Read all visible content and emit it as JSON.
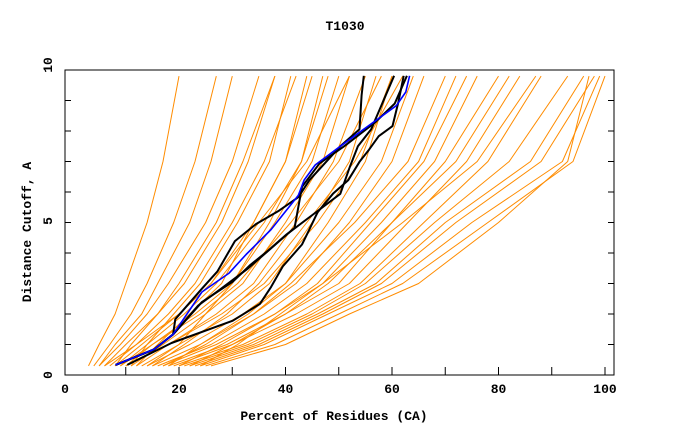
{
  "chart_data": {
    "type": "line",
    "title": "T1030",
    "xlabel": "Percent of Residues (CA)",
    "ylabel": "Distance Cutoff, A",
    "xlim": [
      0,
      100
    ],
    "ylim": [
      0,
      10
    ],
    "xticks": [
      "0",
      "20",
      "40",
      "60",
      "80",
      "100"
    ],
    "yticks": [
      "0",
      "5",
      "10"
    ],
    "grid": false,
    "colors": {
      "others": "#FF8C00",
      "highlight": "#000000",
      "selected": "#0000FF",
      "axes": "#000000"
    },
    "orange_series": [
      {
        "x": [
          3,
          5,
          8,
          10,
          14,
          17,
          20
        ],
        "y": [
          0.3,
          1,
          2,
          3,
          5,
          7,
          9.8
        ]
      },
      {
        "x": [
          4,
          7,
          11,
          14,
          19,
          23,
          27
        ],
        "y": [
          0.3,
          1,
          2,
          3,
          5,
          7,
          9.8
        ]
      },
      {
        "x": [
          5,
          9,
          14,
          18,
          25,
          30,
          35
        ],
        "y": [
          0.3,
          1,
          2,
          3,
          5,
          7,
          9.8
        ]
      },
      {
        "x": [
          6,
          10,
          16,
          21,
          28,
          33,
          38
        ],
        "y": [
          0.3,
          1,
          2,
          3,
          5,
          7,
          9.8
        ]
      },
      {
        "x": [
          7,
          12,
          18,
          23,
          30,
          36,
          42
        ],
        "y": [
          0.3,
          1,
          2,
          3,
          5,
          7,
          9.8
        ]
      },
      {
        "x": [
          8,
          13,
          20,
          26,
          34,
          40,
          45
        ],
        "y": [
          0.3,
          1,
          2,
          3,
          5,
          7,
          9.8
        ]
      },
      {
        "x": [
          9,
          14,
          21,
          27,
          36,
          43,
          48
        ],
        "y": [
          0.3,
          1,
          2,
          3,
          5,
          7,
          9.8
        ]
      },
      {
        "x": [
          10,
          15,
          23,
          30,
          38,
          45,
          50
        ],
        "y": [
          0.3,
          1,
          2,
          3,
          5,
          7,
          9.8
        ]
      },
      {
        "x": [
          11,
          17,
          25,
          32,
          40,
          47,
          52
        ],
        "y": [
          0.3,
          1,
          2,
          3,
          5,
          7,
          9.8
        ]
      },
      {
        "x": [
          12,
          18,
          27,
          34,
          42,
          49,
          55
        ],
        "y": [
          0.3,
          1,
          2,
          3,
          5,
          7,
          9.8
        ]
      },
      {
        "x": [
          13,
          20,
          30,
          37,
          45,
          52,
          57
        ],
        "y": [
          0.3,
          1,
          2,
          3,
          5,
          7,
          9.8
        ]
      },
      {
        "x": [
          14,
          22,
          32,
          40,
          48,
          55,
          60
        ],
        "y": [
          0.3,
          1,
          2,
          3,
          5,
          7,
          9.8
        ]
      },
      {
        "x": [
          15,
          24,
          34,
          42,
          52,
          60,
          66
        ],
        "y": [
          0.3,
          1,
          2,
          3,
          5,
          7,
          9.8
        ]
      },
      {
        "x": [
          16,
          26,
          36,
          44,
          55,
          65,
          72
        ],
        "y": [
          0.3,
          1,
          2,
          3,
          5,
          7,
          9.8
        ]
      },
      {
        "x": [
          17,
          27,
          38,
          47,
          58,
          68,
          76
        ],
        "y": [
          0.3,
          1,
          2,
          3,
          5,
          7,
          9.8
        ]
      },
      {
        "x": [
          18,
          29,
          40,
          50,
          60,
          70,
          80
        ],
        "y": [
          0.3,
          1,
          2,
          3,
          5,
          7,
          9.8
        ]
      },
      {
        "x": [
          19,
          30,
          42,
          52,
          63,
          74,
          84
        ],
        "y": [
          0.3,
          1,
          2,
          3,
          5,
          7,
          9.8
        ]
      },
      {
        "x": [
          20,
          32,
          44,
          54,
          66,
          78,
          88
        ],
        "y": [
          0.3,
          1,
          2,
          3,
          5,
          7,
          9.8
        ]
      },
      {
        "x": [
          21,
          33,
          45,
          55,
          68,
          82,
          93
        ],
        "y": [
          0.3,
          1,
          2,
          3,
          5,
          7,
          9.8
        ]
      },
      {
        "x": [
          22,
          34,
          46,
          57,
          70,
          86,
          96
        ],
        "y": [
          0.3,
          1,
          2,
          3,
          5,
          7,
          9.8
        ]
      },
      {
        "x": [
          23,
          35,
          47,
          58,
          72,
          88,
          98
        ],
        "y": [
          0.3,
          1,
          2,
          3,
          5,
          7,
          9.8
        ]
      },
      {
        "x": [
          24,
          36,
          48,
          60,
          75,
          92,
          99
        ],
        "y": [
          0.3,
          1,
          2,
          3,
          5,
          7,
          9.8
        ]
      },
      {
        "x": [
          25,
          38,
          50,
          62,
          78,
          94,
          100
        ],
        "y": [
          0.3,
          1,
          2,
          3,
          5,
          7,
          9.8
        ]
      },
      {
        "x": [
          26,
          40,
          52,
          65,
          80,
          93,
          97
        ],
        "y": [
          0.3,
          1,
          2,
          3,
          5,
          7,
          9.8
        ]
      },
      {
        "x": [
          14,
          20,
          25,
          30,
          37,
          43,
          47
        ],
        "y": [
          0.3,
          1,
          2,
          3,
          5,
          7,
          9.8
        ]
      },
      {
        "x": [
          8,
          11,
          16,
          20,
          27,
          32,
          38
        ],
        "y": [
          0.3,
          1,
          2,
          3,
          5,
          7,
          9.8
        ]
      },
      {
        "x": [
          12,
          16,
          22,
          28,
          34,
          40,
          44
        ],
        "y": [
          0.3,
          1,
          2,
          3,
          5,
          7,
          9.8
        ]
      },
      {
        "x": [
          18,
          24,
          33,
          40,
          50,
          58,
          64
        ],
        "y": [
          0.3,
          1,
          2,
          3,
          5,
          7,
          9.8
        ]
      },
      {
        "x": [
          20,
          28,
          38,
          46,
          56,
          66,
          74
        ],
        "y": [
          0.3,
          1,
          2,
          3,
          5,
          7,
          9.8
        ]
      },
      {
        "x": [
          10,
          18,
          28,
          36,
          46,
          54,
          60
        ],
        "y": [
          0.3,
          1,
          2,
          3,
          5,
          7,
          9.8
        ]
      },
      {
        "x": [
          6,
          12,
          20,
          26,
          35,
          44,
          52
        ],
        "y": [
          0.3,
          1,
          2,
          3,
          5,
          7,
          9.8
        ]
      },
      {
        "x": [
          15,
          21,
          29,
          35,
          44,
          53,
          62
        ],
        "y": [
          0.3,
          1,
          2,
          3,
          5,
          7,
          9.8
        ]
      },
      {
        "x": [
          17,
          25,
          34,
          41,
          53,
          63,
          70
        ],
        "y": [
          0.3,
          1,
          2,
          3,
          5,
          7,
          9.8
        ]
      },
      {
        "x": [
          22,
          30,
          40,
          48,
          60,
          72,
          82
        ],
        "y": [
          0.3,
          1,
          2,
          3,
          5,
          7,
          9.8
        ]
      },
      {
        "x": [
          24,
          31,
          39,
          47,
          62,
          76,
          87
        ],
        "y": [
          0.3,
          1,
          2,
          3,
          5,
          7,
          9.8
        ]
      },
      {
        "x": [
          9,
          15,
          24,
          31,
          41,
          50,
          58
        ],
        "y": [
          0.3,
          1,
          2,
          3,
          5,
          7,
          9.8
        ]
      },
      {
        "x": [
          5,
          8,
          13,
          16,
          22,
          26,
          30
        ],
        "y": [
          0.3,
          1,
          2,
          3,
          5,
          7,
          9.8
        ]
      },
      {
        "x": [
          11,
          14,
          19,
          24,
          31,
          37,
          41
        ],
        "y": [
          0.3,
          1,
          2,
          3,
          5,
          7,
          9.8
        ]
      }
    ],
    "black_series": [
      {
        "x": [
          10.3,
          18.6,
          30.1,
          35.2,
          37.3,
          39.5,
          43.1,
          44.5,
          46.0,
          48.9,
          51.8,
          53.9,
          55.7,
          57.5,
          60.1,
          61.2,
          62.2
        ],
        "y": [
          0.33,
          1.05,
          1.78,
          2.33,
          2.89,
          3.56,
          4.28,
          4.78,
          5.33,
          5.94,
          6.39,
          6.99,
          7.39,
          7.83,
          8.16,
          8.95,
          9.81
        ]
      },
      {
        "x": [
          8.1,
          15.3,
          18.9,
          19.3,
          24.3,
          27.2,
          30.5,
          34.4,
          38.8,
          42.4,
          44.5,
          50.3,
          53.9,
          54.3,
          54.7
        ],
        "y": [
          0.33,
          0.84,
          1.33,
          1.83,
          2.83,
          3.39,
          4.39,
          4.94,
          5.39,
          5.83,
          6.39,
          7.5,
          8.06,
          9.17,
          9.81
        ]
      },
      {
        "x": [
          8.1,
          15.3,
          18.9,
          24.3,
          30.1,
          33.4,
          36.6,
          40.2,
          45.3,
          50.3,
          52.1,
          53.6,
          56.1,
          60.4
        ],
        "y": [
          0.33,
          0.84,
          1.33,
          2.39,
          3.06,
          3.61,
          4.06,
          4.61,
          5.28,
          5.94,
          6.83,
          7.5,
          8.06,
          9.81
        ]
      },
      {
        "x": [
          8.1,
          15.3,
          18.9,
          23.6,
          27.9,
          33.0,
          38.1,
          41.7,
          43.1,
          46.4,
          51.0,
          56.8,
          60.5,
          62.8
        ],
        "y": [
          0.33,
          0.84,
          1.33,
          2.28,
          2.83,
          3.5,
          4.28,
          4.83,
          6.17,
          6.94,
          7.5,
          8.28,
          8.9,
          9.81
        ]
      }
    ],
    "blue_series": {
      "x": [
        8.1,
        15.3,
        18.9,
        24.3,
        29.4,
        32.6,
        37.3,
        42.4,
        43.5,
        45.6,
        50.3,
        54.7,
        60.8,
        62.6,
        63.3
      ],
      "y": [
        0.33,
        0.84,
        1.33,
        2.72,
        3.34,
        3.95,
        4.77,
        5.89,
        6.39,
        6.89,
        7.5,
        8.06,
        8.83,
        9.28,
        9.81
      ]
    }
  }
}
